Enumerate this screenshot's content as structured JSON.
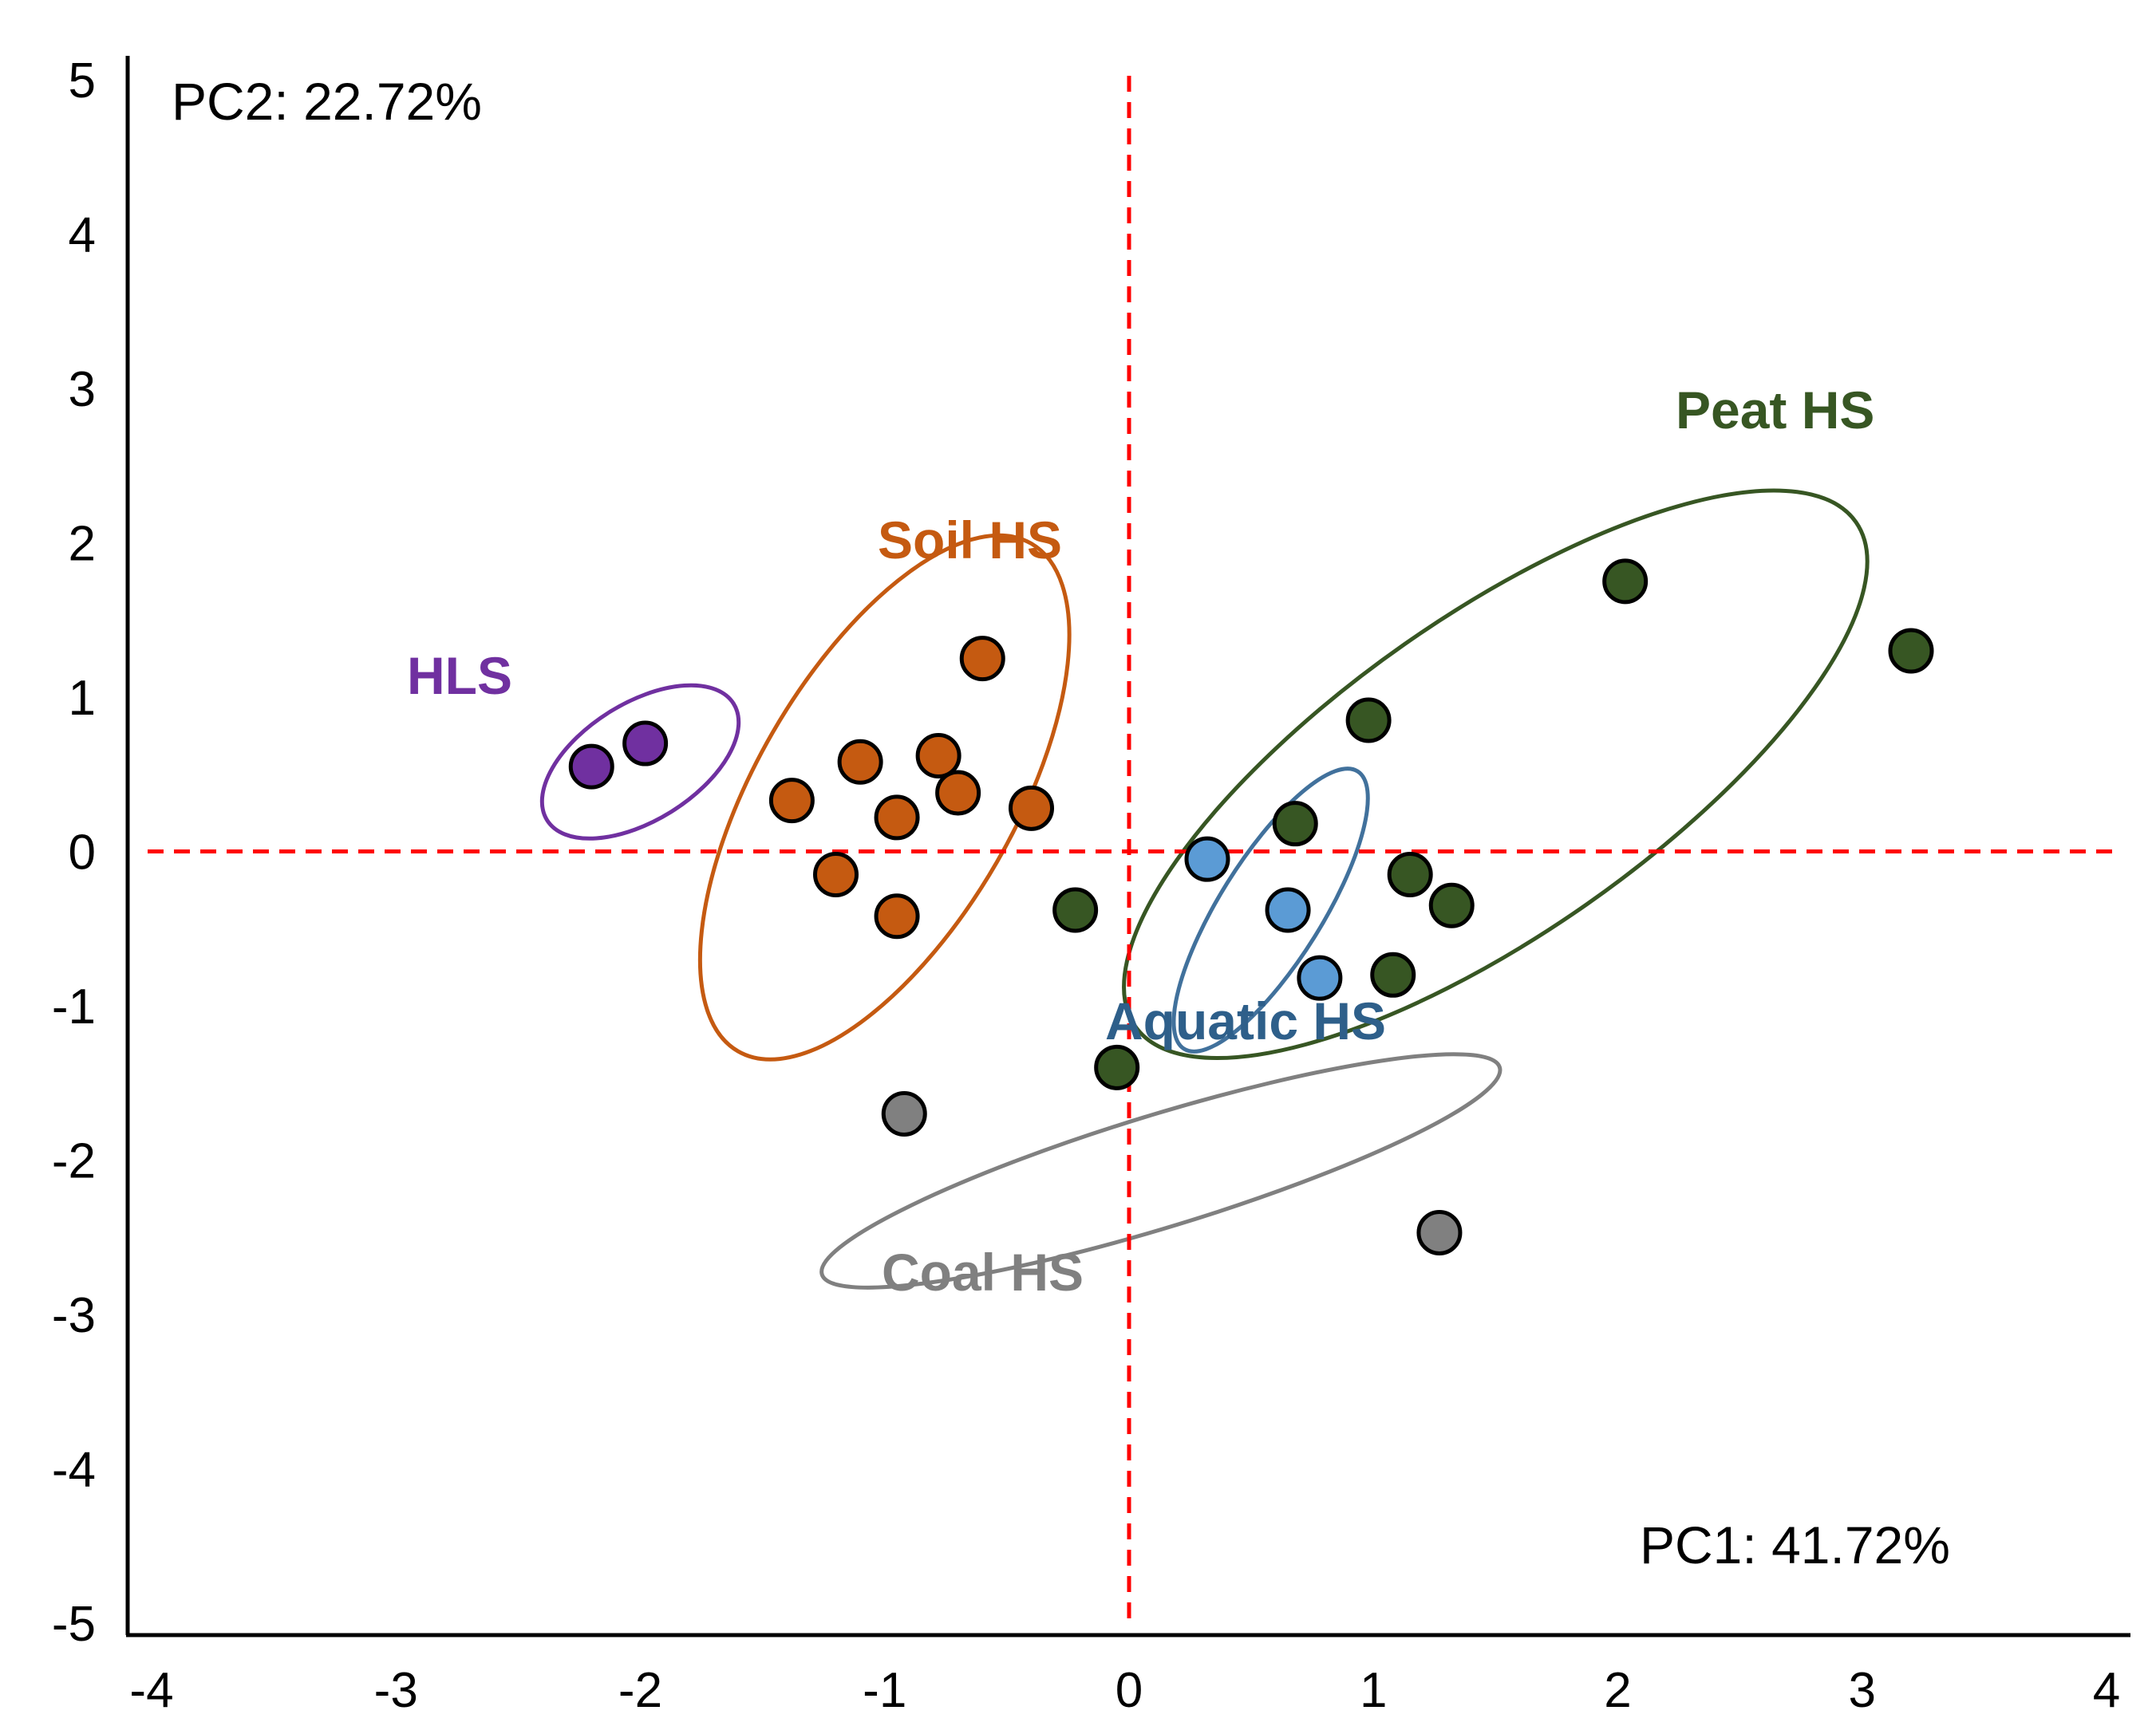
{
  "chart_data": {
    "type": "scatter",
    "title": "",
    "xlabel": "PC1: 41.72%",
    "ylabel": "PC2: 22.72%",
    "xlim": [
      -4,
      4
    ],
    "ylim": [
      -5,
      5
    ],
    "x_ticks": [
      -4,
      -3,
      -2,
      -1,
      0,
      1,
      2,
      3,
      4
    ],
    "y_ticks": [
      5,
      4,
      3,
      2,
      1,
      0,
      -1,
      -2,
      -3,
      -4,
      -5
    ],
    "reference_lines": {
      "x": 0,
      "y": 0,
      "color": "#ff0000",
      "style": "dashed"
    },
    "series": [
      {
        "name": "HLS",
        "color": "#7030a0",
        "points": [
          [
            -2.2,
            0.55
          ],
          [
            -1.98,
            0.7
          ]
        ],
        "ellipse": {
          "cx": -2.0,
          "cy": 0.58,
          "rx": 0.45,
          "ry": 0.24,
          "rotation_deg": -32
        }
      },
      {
        "name": "Soil HS",
        "color": "#c55a11",
        "points": [
          [
            -1.38,
            0.33
          ],
          [
            -1.1,
            0.58
          ],
          [
            -0.95,
            0.22
          ],
          [
            -0.78,
            0.62
          ],
          [
            -0.7,
            0.38
          ],
          [
            -0.6,
            1.25
          ],
          [
            -0.4,
            0.28
          ],
          [
            -1.2,
            -0.15
          ],
          [
            -0.95,
            -0.42
          ]
        ],
        "ellipse": {
          "cx": -1.0,
          "cy": 0.35,
          "rx": 1.2,
          "ry": 0.53,
          "rotation_deg": -60
        }
      },
      {
        "name": "Peat HS",
        "color": "#375623",
        "points": [
          [
            2.03,
            1.75
          ],
          [
            3.2,
            1.3
          ],
          [
            0.98,
            0.85
          ],
          [
            0.68,
            0.18
          ],
          [
            1.15,
            -0.15
          ],
          [
            1.32,
            -0.35
          ],
          [
            1.08,
            -0.8
          ],
          [
            -0.22,
            -0.38
          ],
          [
            -0.05,
            -1.4
          ]
        ],
        "ellipse": {
          "cx": 1.5,
          "cy": 0.5,
          "rx": 1.8,
          "ry": 0.65,
          "rotation_deg": -35
        }
      },
      {
        "name": "Aquatic HS",
        "color": "#5b9bd5",
        "label_color": "#2e5f8a",
        "points": [
          [
            0.32,
            -0.05
          ],
          [
            0.65,
            -0.38
          ],
          [
            0.78,
            -0.82
          ]
        ],
        "ellipse": {
          "cx": 0.58,
          "cy": -0.38,
          "rx": 0.67,
          "ry": 0.21,
          "rotation_deg": -58
        }
      },
      {
        "name": "Coal HS",
        "color": "#808080",
        "label_color": "#808080",
        "points": [
          [
            -0.92,
            -1.7
          ],
          [
            1.27,
            -2.47
          ]
        ],
        "ellipse": {
          "cx": 0.13,
          "cy": -2.07,
          "rx": 1.45,
          "ry": 0.23,
          "rotation_deg": -17
        }
      }
    ],
    "annotations": {
      "hls": "HLS",
      "soil": "Soil HS",
      "peat": "Peat HS",
      "aquatic": "Aquatic HS",
      "coal": "Coal HS"
    }
  }
}
